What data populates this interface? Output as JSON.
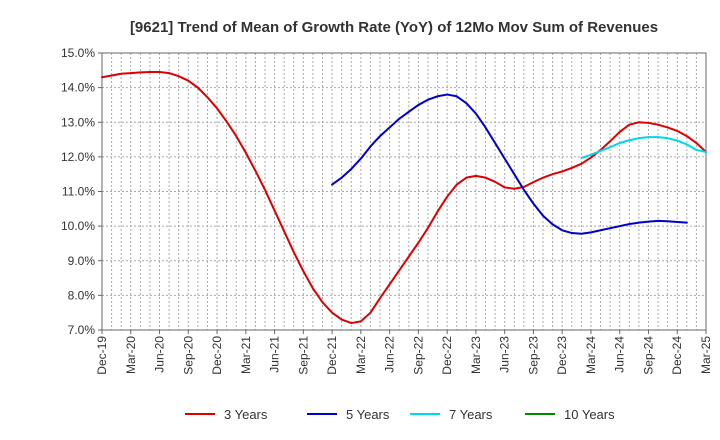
{
  "chart_data": {
    "type": "line",
    "title": "[9621]  Trend of Mean of Growth Rate (YoY) of 12Mo Mov Sum of Revenues",
    "xlabel": "",
    "ylabel": "",
    "ylim": [
      7.0,
      15.0
    ],
    "yticks": [
      "7.0%",
      "8.0%",
      "9.0%",
      "10.0%",
      "11.0%",
      "12.0%",
      "13.0%",
      "14.0%",
      "15.0%"
    ],
    "yticks_values": [
      7,
      8,
      9,
      10,
      11,
      12,
      13,
      14,
      15
    ],
    "xtick_labels": [
      "Dec-19",
      "Mar-20",
      "Jun-20",
      "Sep-20",
      "Dec-20",
      "Mar-21",
      "Jun-21",
      "Sep-21",
      "Dec-21",
      "Mar-22",
      "Jun-22",
      "Sep-22",
      "Dec-22",
      "Mar-23",
      "Jun-23",
      "Sep-23",
      "Dec-23",
      "Mar-24",
      "Jun-24",
      "Sep-24",
      "Dec-24",
      "Mar-25"
    ],
    "x_month_count": 63,
    "grid": true,
    "legend": "bottom",
    "series": [
      {
        "name": "3 Years",
        "color": "#dd0000",
        "start_month": 0,
        "values": [
          14.3,
          14.35,
          14.4,
          14.42,
          14.44,
          14.45,
          14.45,
          14.42,
          14.33,
          14.2,
          14.0,
          13.72,
          13.4,
          13.02,
          12.6,
          12.12,
          11.6,
          11.05,
          10.45,
          9.85,
          9.25,
          8.7,
          8.2,
          7.8,
          7.5,
          7.3,
          7.2,
          7.25,
          7.5,
          7.92,
          8.32,
          8.72,
          9.12,
          9.52,
          9.95,
          10.42,
          10.85,
          11.2,
          11.4,
          11.45,
          11.4,
          11.28,
          11.12,
          11.08,
          11.13,
          11.27,
          11.4,
          11.5,
          11.58,
          11.68,
          11.8,
          11.98,
          12.2,
          12.45,
          12.72,
          12.93,
          13.0,
          12.98,
          12.93,
          12.85,
          12.75,
          12.6,
          12.4,
          12.14
        ]
      },
      {
        "name": "5 Years",
        "color": "#0000cc",
        "start_month": 24,
        "values": [
          11.2,
          11.4,
          11.65,
          11.95,
          12.3,
          12.6,
          12.85,
          13.1,
          13.3,
          13.5,
          13.65,
          13.75,
          13.8,
          13.75,
          13.55,
          13.25,
          12.85,
          12.4,
          11.95,
          11.5,
          11.05,
          10.65,
          10.3,
          10.05,
          9.88,
          9.8,
          9.78,
          9.82,
          9.88,
          9.94,
          10.0,
          10.06,
          10.1,
          10.13,
          10.15,
          10.14,
          10.12,
          10.1
        ]
      },
      {
        "name": "7 Years",
        "color": "#00d8e8",
        "start_month": 50,
        "values": [
          11.97,
          12.06,
          12.17,
          12.28,
          12.4,
          12.48,
          12.54,
          12.57,
          12.57,
          12.54,
          12.47,
          12.36,
          12.2,
          12.14
        ]
      },
      {
        "name": "10 Years",
        "color": "#008800",
        "start_month": 0,
        "values": []
      }
    ]
  }
}
